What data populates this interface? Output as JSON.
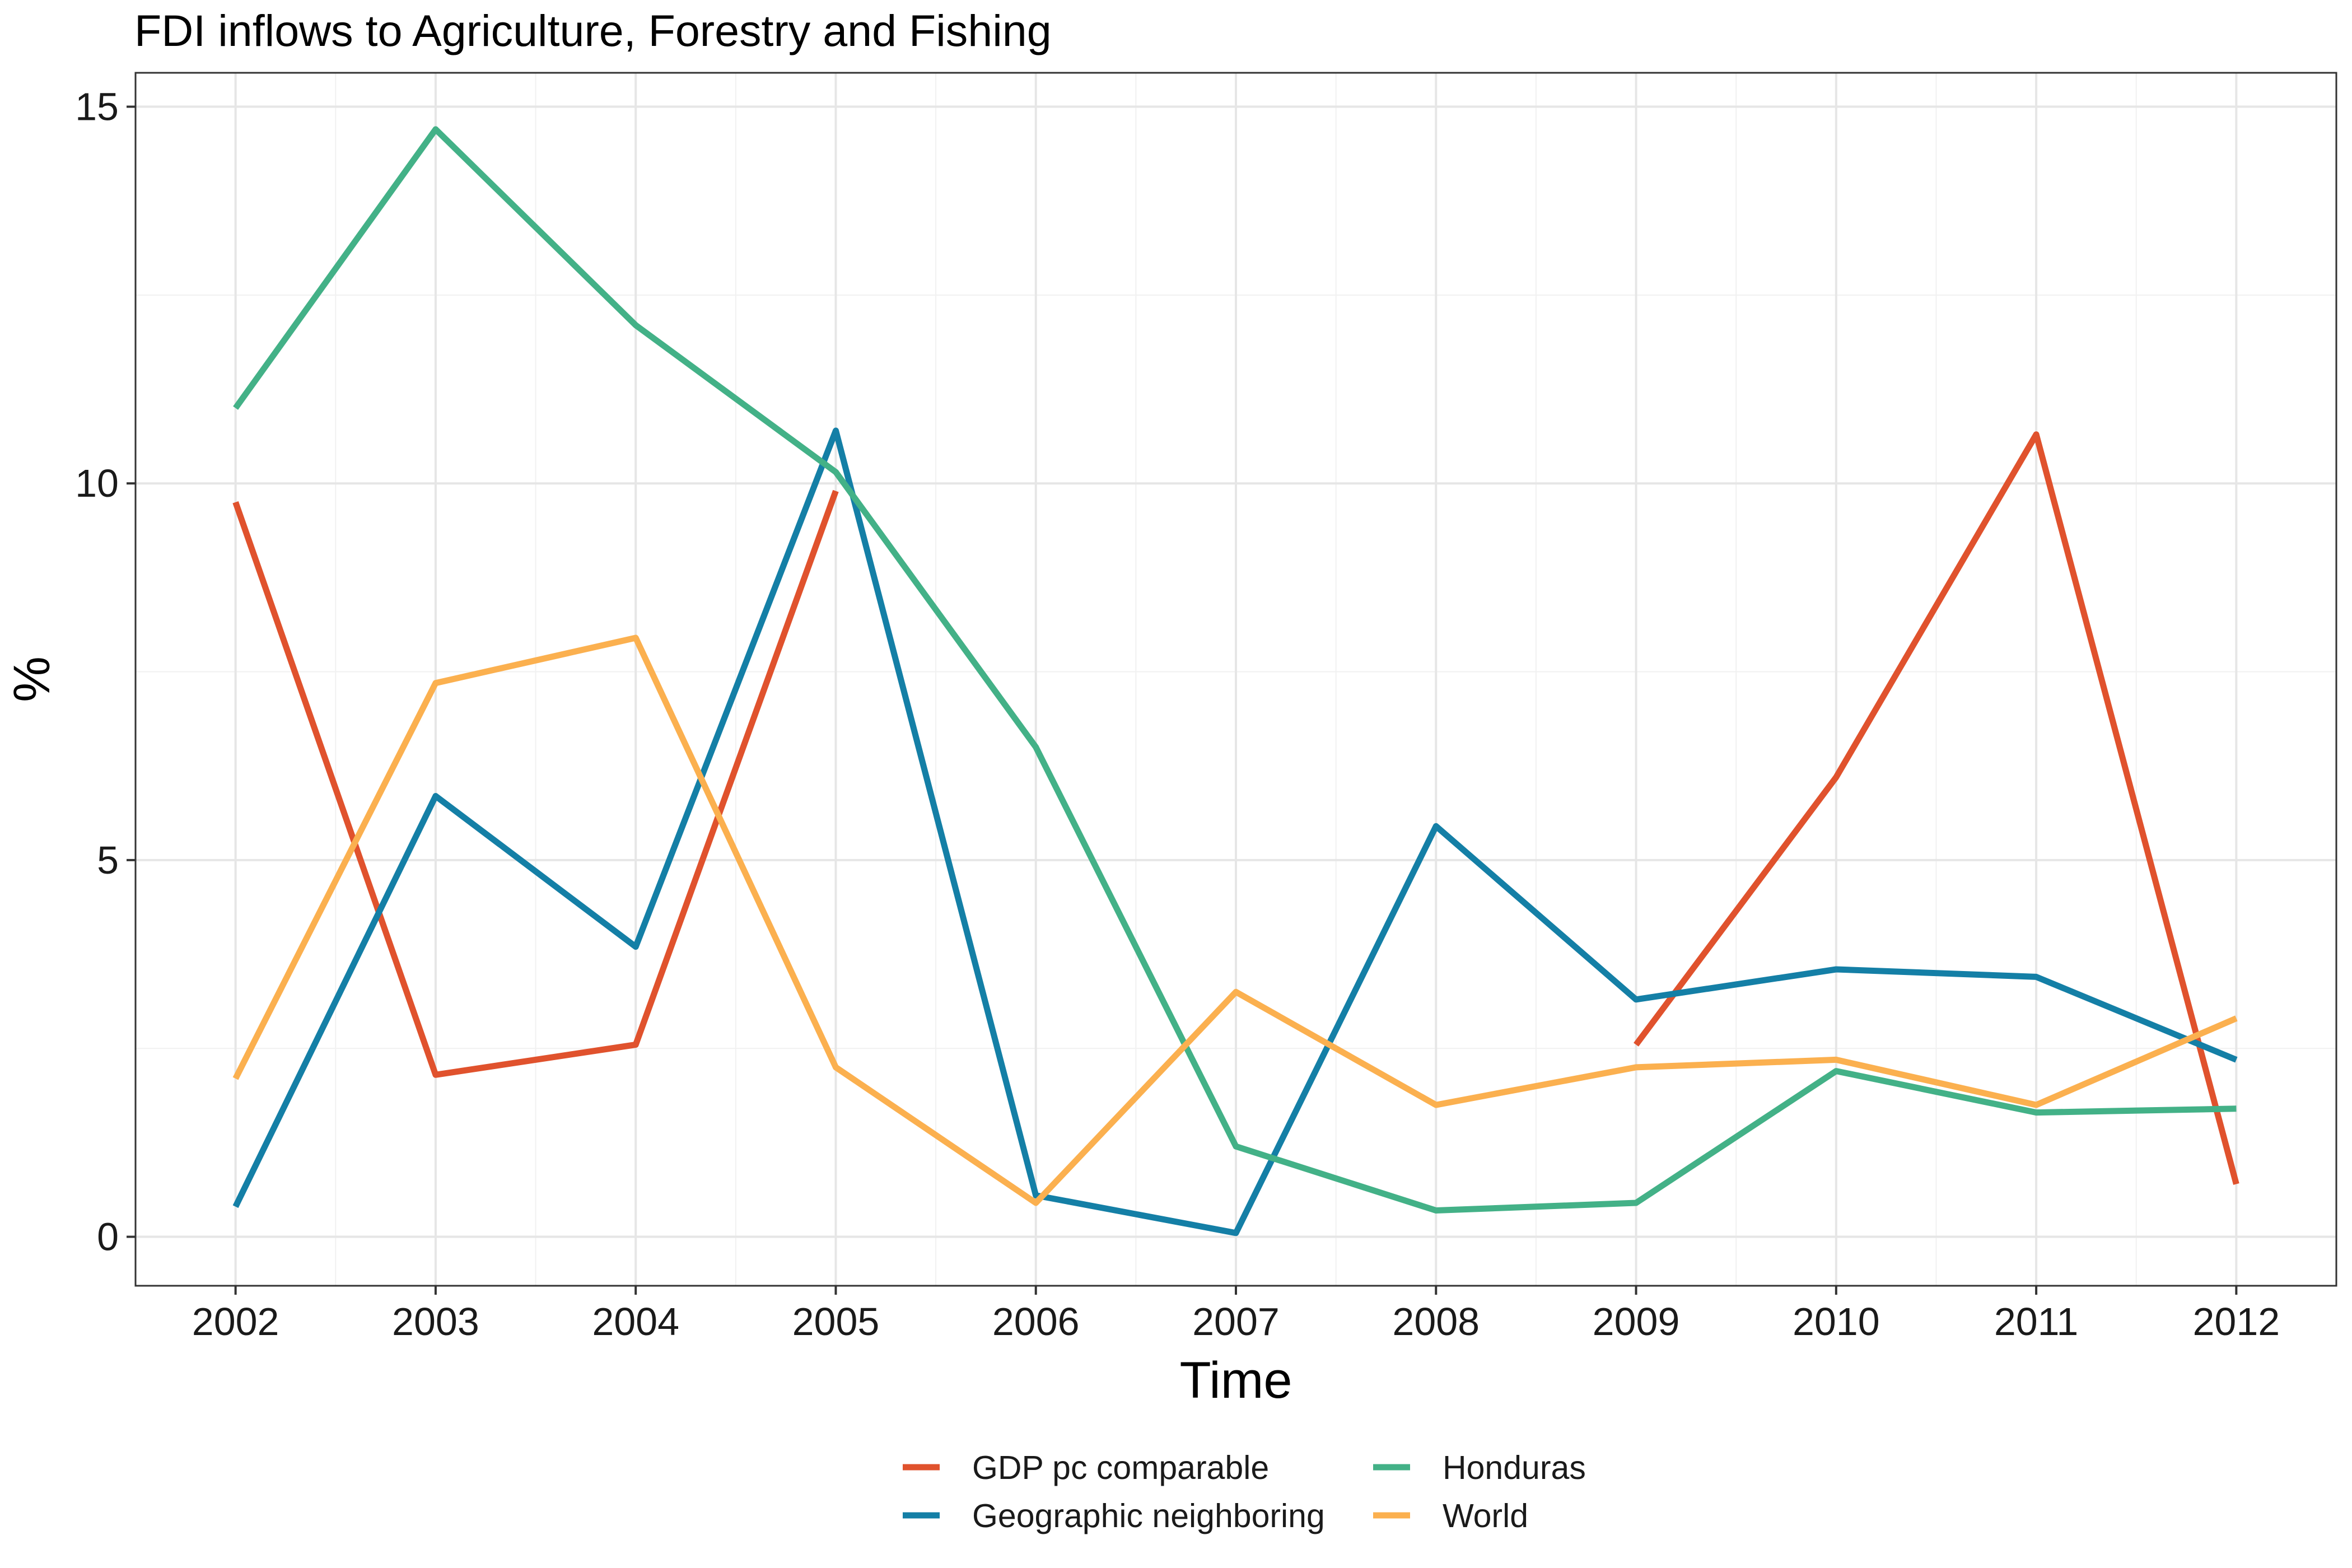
{
  "chart_data": {
    "type": "line",
    "title": "FDI inflows to Agriculture, Forestry and Fishing",
    "xlabel": "Time",
    "ylabel": "%",
    "x": [
      2002,
      2003,
      2004,
      2005,
      2006,
      2007,
      2008,
      2009,
      2010,
      2011,
      2012
    ],
    "xlim": [
      2001.5,
      2012.5
    ],
    "ylim": [
      -0.65,
      15.45
    ],
    "yticks": [
      0,
      5,
      10,
      15
    ],
    "grid": true,
    "legend_position": "bottom",
    "series": [
      {
        "name": "GDP pc comparable",
        "color": "#e0522d",
        "values": [
          9.75,
          2.15,
          2.55,
          9.9,
          null,
          null,
          null,
          2.55,
          6.1,
          10.65,
          0.7
        ]
      },
      {
        "name": "Geographic neighboring",
        "color": "#147fa6",
        "values": [
          0.4,
          5.85,
          3.85,
          10.7,
          0.55,
          0.05,
          5.45,
          3.15,
          3.55,
          3.45,
          2.35
        ]
      },
      {
        "name": "Honduras",
        "color": "#43b187",
        "values": [
          11.0,
          14.7,
          12.1,
          10.15,
          6.5,
          1.2,
          0.35,
          0.45,
          2.2,
          1.65,
          1.7
        ]
      },
      {
        "name": "World",
        "color": "#fbb04f",
        "values": [
          2.1,
          7.35,
          7.95,
          2.25,
          0.45,
          3.25,
          1.75,
          2.25,
          2.35,
          1.75,
          2.9
        ]
      }
    ]
  }
}
